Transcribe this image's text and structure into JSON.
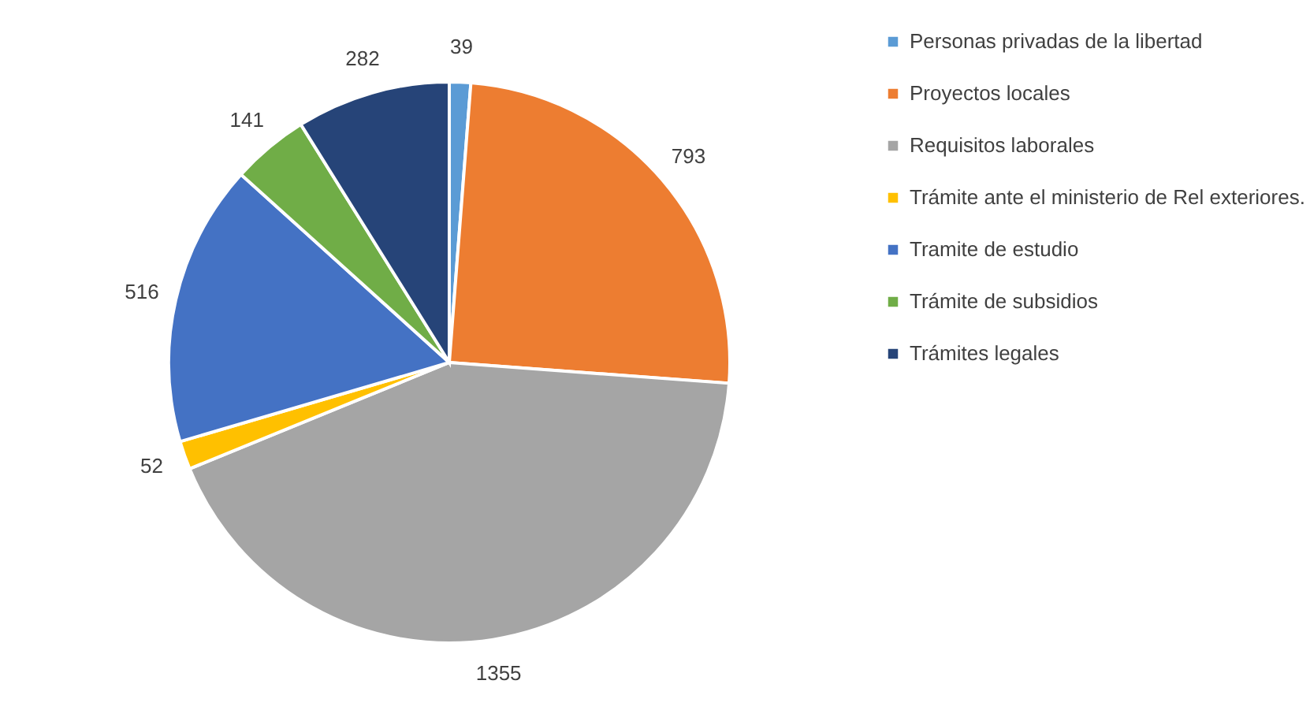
{
  "chart_data": {
    "type": "pie",
    "categories": [
      "Personas privadas de la libertad",
      "Proyectos locales",
      "Requisitos laborales",
      "Trámite ante el ministerio de Rel exteriores.",
      "Tramite de estudio",
      "Trámite de subsidios",
      "Trámites legales"
    ],
    "values": [
      39,
      793,
      1355,
      52,
      516,
      141,
      282
    ],
    "colors": [
      "#5b9bd5",
      "#ed7d31",
      "#a5a5a5",
      "#ffc000",
      "#4472c4",
      "#70ad47",
      "#264478"
    ],
    "data_labels": true,
    "legend": "right"
  }
}
